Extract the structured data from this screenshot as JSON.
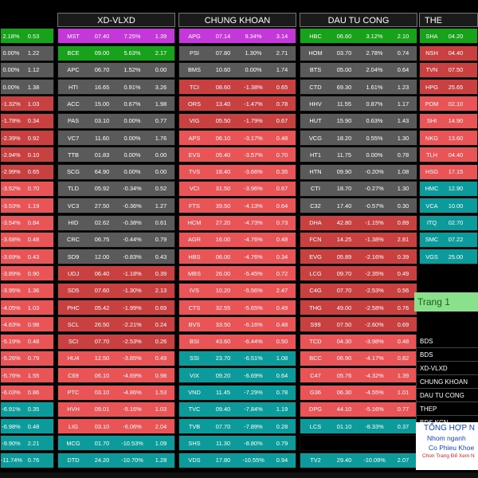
{
  "colors": {
    "green": "#18a11a",
    "gray": "#5a5a5a",
    "red": "#e95457",
    "deep": "#c94041",
    "teal": "#0d9a9a",
    "magenta": "#c437d8"
  },
  "col0": [
    {
      "s": "",
      "p": "2.18%",
      "c": "",
      "v": "0.53",
      "k": "green"
    },
    {
      "s": "",
      "p": "0.00%",
      "c": "",
      "v": "1.22",
      "k": "gray"
    },
    {
      "s": "",
      "p": "0.00%",
      "c": "",
      "v": "1.12",
      "k": "gray"
    },
    {
      "s": "",
      "p": "0.00%",
      "c": "",
      "v": "1.38",
      "k": "gray"
    },
    {
      "s": "",
      "p": "-1.32%",
      "c": "",
      "v": "1.03",
      "k": "deep"
    },
    {
      "s": "",
      "p": "-1.78%",
      "c": "",
      "v": "0.34",
      "k": "deep"
    },
    {
      "s": "",
      "p": "-2.39%",
      "c": "",
      "v": "0.92",
      "k": "deep"
    },
    {
      "s": "",
      "p": "-2.94%",
      "c": "",
      "v": "0.10",
      "k": "deep"
    },
    {
      "s": "",
      "p": "-2.99%",
      "c": "",
      "v": "0.65",
      "k": "deep"
    },
    {
      "s": "",
      "p": "-3.52%",
      "c": "",
      "v": "0.70",
      "k": "red"
    },
    {
      "s": "",
      "p": "-3.53%",
      "c": "",
      "v": "1.19",
      "k": "red"
    },
    {
      "s": "",
      "p": "-3.54%",
      "c": "",
      "v": "0.84",
      "k": "red"
    },
    {
      "s": "",
      "p": "-3.68%",
      "c": "",
      "v": "0.48",
      "k": "red"
    },
    {
      "s": "",
      "p": "-3.69%",
      "c": "",
      "v": "0.43",
      "k": "red"
    },
    {
      "s": "",
      "p": "-3.89%",
      "c": "",
      "v": "0.90",
      "k": "red"
    },
    {
      "s": "",
      "p": "-3.95%",
      "c": "",
      "v": "1.36",
      "k": "red"
    },
    {
      "s": "",
      "p": "-4.05%",
      "c": "",
      "v": "1.03",
      "k": "red"
    },
    {
      "s": "",
      "p": "-4.63%",
      "c": "",
      "v": "0.98",
      "k": "red"
    },
    {
      "s": "",
      "p": "-5.19%",
      "c": "",
      "v": "0.48",
      "k": "red"
    },
    {
      "s": "",
      "p": "-5.26%",
      "c": "",
      "v": "0.79",
      "k": "red"
    },
    {
      "s": "",
      "p": "-5.76%",
      "c": "",
      "v": "1.55",
      "k": "red"
    },
    {
      "s": "",
      "p": "-6.03%",
      "c": "",
      "v": "0.86",
      "k": "red"
    },
    {
      "s": "",
      "p": "-6.91%",
      "c": "",
      "v": "0.35",
      "k": "teal"
    },
    {
      "s": "",
      "p": "-6.98%",
      "c": "",
      "v": "0.48",
      "k": "teal"
    },
    {
      "s": "",
      "p": "-9.90%",
      "c": "",
      "v": "2.21",
      "k": "teal"
    },
    {
      "s": "",
      "p": "-11.74%",
      "c": "",
      "v": "0.76",
      "k": "teal"
    }
  ],
  "panels": [
    {
      "title": "XD-VLXD",
      "rows": [
        {
          "s": "MST",
          "p": "07.40",
          "c": "7.25%",
          "v": "1.39",
          "k": "magenta"
        },
        {
          "s": "BCE",
          "p": "09.00",
          "c": "5.63%",
          "v": "2.17",
          "k": "green"
        },
        {
          "s": "APC",
          "p": "06.70",
          "c": "1.52%",
          "v": "0.00",
          "k": "gray"
        },
        {
          "s": "HTI",
          "p": "16.65",
          "c": "0.91%",
          "v": "3.26",
          "k": "gray"
        },
        {
          "s": "ACC",
          "p": "15.00",
          "c": "0.67%",
          "v": "1.98",
          "k": "gray"
        },
        {
          "s": "PAS",
          "p": "03.10",
          "c": "0.00%",
          "v": "0.77",
          "k": "gray"
        },
        {
          "s": "VC7",
          "p": "11.60",
          "c": "0.00%",
          "v": "1.76",
          "k": "gray"
        },
        {
          "s": "TTB",
          "p": "01.83",
          "c": "0.00%",
          "v": "0.00",
          "k": "gray"
        },
        {
          "s": "SCG",
          "p": "64.90",
          "c": "0.00%",
          "v": "0.00",
          "k": "gray"
        },
        {
          "s": "TLD",
          "p": "05.92",
          "c": "-0.34%",
          "v": "0.52",
          "k": "gray"
        },
        {
          "s": "VC3",
          "p": "27.50",
          "c": "-0.36%",
          "v": "1.27",
          "k": "gray"
        },
        {
          "s": "HID",
          "p": "02.62",
          "c": "-0.38%",
          "v": "0.61",
          "k": "gray"
        },
        {
          "s": "CRC",
          "p": "06.75",
          "c": "-0.44%",
          "v": "0.79",
          "k": "gray"
        },
        {
          "s": "SD9",
          "p": "12.00",
          "c": "-0.83%",
          "v": "0.43",
          "k": "gray"
        },
        {
          "s": "UDJ",
          "p": "06.40",
          "c": "-1.18%",
          "v": "0.39",
          "k": "deep"
        },
        {
          "s": "SD5",
          "p": "07.60",
          "c": "-1.30%",
          "v": "2.13",
          "k": "deep"
        },
        {
          "s": "PHC",
          "p": "05.42",
          "c": "-1.99%",
          "v": "0.69",
          "k": "deep"
        },
        {
          "s": "SCL",
          "p": "26.50",
          "c": "-2.21%",
          "v": "0.24",
          "k": "deep"
        },
        {
          "s": "SCI",
          "p": "07.70",
          "c": "-2.53%",
          "v": "0.26",
          "k": "deep"
        },
        {
          "s": "HU4",
          "p": "12.50",
          "c": "-3.85%",
          "v": "0.49",
          "k": "red"
        },
        {
          "s": "C69",
          "p": "06.10",
          "c": "-4.69%",
          "v": "0.98",
          "k": "red"
        },
        {
          "s": "PTC",
          "p": "03.10",
          "c": "-4.86%",
          "v": "1.53",
          "k": "red"
        },
        {
          "s": "HVH",
          "p": "09.01",
          "c": "-5.16%",
          "v": "1.03",
          "k": "red"
        },
        {
          "s": "LIG",
          "p": "03.10",
          "c": "-6.06%",
          "v": "2.04",
          "k": "red"
        },
        {
          "s": "MCG",
          "p": "01.70",
          "c": "-10.53%",
          "v": "1.09",
          "k": "teal"
        },
        {
          "s": "DTD",
          "p": "24.20",
          "c": "-10.70%",
          "v": "1.28",
          "k": "teal"
        }
      ]
    },
    {
      "title": "CHUNG KHOAN",
      "rows": [
        {
          "s": "APG",
          "p": "07.14",
          "c": "9.34%",
          "v": "3.14",
          "k": "magenta"
        },
        {
          "s": "PSI",
          "p": "07.80",
          "c": "1.30%",
          "v": "2.71",
          "k": "gray"
        },
        {
          "s": "BMS",
          "p": "10.60",
          "c": "0.00%",
          "v": "1.74",
          "k": "gray"
        },
        {
          "s": "TCI",
          "p": "08.60",
          "c": "-1.38%",
          "v": "0.65",
          "k": "deep"
        },
        {
          "s": "ORS",
          "p": "13.40",
          "c": "-1.47%",
          "v": "0.78",
          "k": "deep"
        },
        {
          "s": "VIG",
          "p": "05.50",
          "c": "-1.79%",
          "v": "0.67",
          "k": "deep"
        },
        {
          "s": "APS",
          "p": "06.10",
          "c": "-3.17%",
          "v": "0.48",
          "k": "red"
        },
        {
          "s": "EVS",
          "p": "05.40",
          "c": "-3.57%",
          "v": "0.70",
          "k": "red"
        },
        {
          "s": "TVS",
          "p": "18.40",
          "c": "-3.66%",
          "v": "0.35",
          "k": "red"
        },
        {
          "s": "VCI",
          "p": "31.50",
          "c": "-3.96%",
          "v": "0.67",
          "k": "red"
        },
        {
          "s": "FTS",
          "p": "39.50",
          "c": "-4.13%",
          "v": "0.64",
          "k": "red"
        },
        {
          "s": "HCM",
          "p": "27.20",
          "c": "-4.73%",
          "v": "0.73",
          "k": "red"
        },
        {
          "s": "AGR",
          "p": "16.00",
          "c": "-4.76%",
          "v": "0.48",
          "k": "red"
        },
        {
          "s": "HBS",
          "p": "06.00",
          "c": "-4.76%",
          "v": "0.34",
          "k": "red"
        },
        {
          "s": "MBS",
          "p": "26.00",
          "c": "-5.45%",
          "v": "0.72",
          "k": "red"
        },
        {
          "s": "IVS",
          "p": "10.20",
          "c": "-5.56%",
          "v": "2.47",
          "k": "red"
        },
        {
          "s": "CTS",
          "p": "32.55",
          "c": "-5.65%",
          "v": "0.49",
          "k": "red"
        },
        {
          "s": "BVS",
          "p": "33.50",
          "c": "-6.16%",
          "v": "0.48",
          "k": "red"
        },
        {
          "s": "BSI",
          "p": "43.60",
          "c": "-6.44%",
          "v": "0.50",
          "k": "red"
        },
        {
          "s": "SSI",
          "p": "23.70",
          "c": "-6.51%",
          "v": "1.08",
          "k": "teal"
        },
        {
          "s": "VIX",
          "p": "09.20",
          "c": "-6.69%",
          "v": "0.64",
          "k": "teal"
        },
        {
          "s": "VND",
          "p": "11.45",
          "c": "-7.29%",
          "v": "0.78",
          "k": "teal"
        },
        {
          "s": "TVC",
          "p": "09.40",
          "c": "-7.84%",
          "v": "1.19",
          "k": "teal"
        },
        {
          "s": "TVB",
          "p": "07.70",
          "c": "-7.89%",
          "v": "0.28",
          "k": "teal"
        },
        {
          "s": "SHS",
          "p": "11.30",
          "c": "-8.80%",
          "v": "0.79",
          "k": "teal"
        },
        {
          "s": "VDS",
          "p": "17.80",
          "c": "-10.55%",
          "v": "0.94",
          "k": "teal"
        }
      ]
    },
    {
      "title": "DAU TU CONG",
      "rows": [
        {
          "s": "HBC",
          "p": "06.60",
          "c": "3.12%",
          "v": "2.10",
          "k": "green"
        },
        {
          "s": "HOM",
          "p": "03.70",
          "c": "2.78%",
          "v": "0.74",
          "k": "gray"
        },
        {
          "s": "BTS",
          "p": "05.00",
          "c": "2.04%",
          "v": "0.64",
          "k": "gray"
        },
        {
          "s": "CTD",
          "p": "69.30",
          "c": "1.61%",
          "v": "1.23",
          "k": "gray"
        },
        {
          "s": "HHV",
          "p": "11.55",
          "c": "0.87%",
          "v": "1.17",
          "k": "gray"
        },
        {
          "s": "HUT",
          "p": "15.90",
          "c": "0.63%",
          "v": "1.43",
          "k": "gray"
        },
        {
          "s": "VCG",
          "p": "18.20",
          "c": "0.55%",
          "v": "1.30",
          "k": "gray"
        },
        {
          "s": "HT1",
          "p": "11.75",
          "c": "0.00%",
          "v": "0.78",
          "k": "gray"
        },
        {
          "s": "HTN",
          "p": "09.90",
          "c": "-0.20%",
          "v": "1.08",
          "k": "gray"
        },
        {
          "s": "CTI",
          "p": "18.70",
          "c": "-0.27%",
          "v": "1.30",
          "k": "gray"
        },
        {
          "s": "C32",
          "p": "17.40",
          "c": "-0.57%",
          "v": "0.30",
          "k": "gray"
        },
        {
          "s": "DHA",
          "p": "42.80",
          "c": "-1.15%",
          "v": "0.89",
          "k": "deep"
        },
        {
          "s": "FCN",
          "p": "14.25",
          "c": "-1.38%",
          "v": "2.81",
          "k": "deep"
        },
        {
          "s": "EVG",
          "p": "05.89",
          "c": "-2.16%",
          "v": "0.39",
          "k": "deep"
        },
        {
          "s": "LCG",
          "p": "09.70",
          "c": "-2.35%",
          "v": "0.49",
          "k": "deep"
        },
        {
          "s": "C4G",
          "p": "07.70",
          "c": "-2.53%",
          "v": "0.56",
          "k": "deep"
        },
        {
          "s": "THG",
          "p": "49.00",
          "c": "-2.58%",
          "v": "0.76",
          "k": "deep"
        },
        {
          "s": "S99",
          "p": "07.50",
          "c": "-2.60%",
          "v": "0.69",
          "k": "deep"
        },
        {
          "s": "TCD",
          "p": "04.30",
          "c": "-3.98%",
          "v": "0.48",
          "k": "red"
        },
        {
          "s": "BCC",
          "p": "06.90",
          "c": "-4.17%",
          "v": "0.82",
          "k": "red"
        },
        {
          "s": "C47",
          "p": "05.76",
          "c": "-4.32%",
          "v": "1.39",
          "k": "red"
        },
        {
          "s": "G36",
          "p": "06.30",
          "c": "-4.55%",
          "v": "1.01",
          "k": "red"
        },
        {
          "s": "DPG",
          "p": "44.10",
          "c": "-5.16%",
          "v": "0.77",
          "k": "red"
        },
        {
          "s": "LCS",
          "p": "01.10",
          "c": "-8.33%",
          "v": "0.37",
          "k": "teal"
        },
        {
          "s": "",
          "p": "",
          "c": "",
          "v": "",
          "k": "black"
        },
        {
          "s": "TV2",
          "p": "29.40",
          "c": "-10.09%",
          "v": "2.07",
          "k": "teal"
        }
      ]
    },
    {
      "title": "THE",
      "rows": [
        {
          "s": "SHA",
          "p": "04.20",
          "c": "",
          "v": "",
          "k": "green"
        },
        {
          "s": "NSH",
          "p": "04.40",
          "c": "",
          "v": "",
          "k": "deep"
        },
        {
          "s": "TVN",
          "p": "07.50",
          "c": "",
          "v": "",
          "k": "deep"
        },
        {
          "s": "HPG",
          "p": "25.65",
          "c": "",
          "v": "",
          "k": "deep"
        },
        {
          "s": "POM",
          "p": "02.10",
          "c": "",
          "v": "",
          "k": "red"
        },
        {
          "s": "SHI",
          "p": "14.90",
          "c": "",
          "v": "",
          "k": "red"
        },
        {
          "s": "NKG",
          "p": "13.60",
          "c": "",
          "v": "",
          "k": "red"
        },
        {
          "s": "TLH",
          "p": "04.40",
          "c": "",
          "v": "",
          "k": "red"
        },
        {
          "s": "HSG",
          "p": "17.15",
          "c": "",
          "v": "",
          "k": "red"
        },
        {
          "s": "HMC",
          "p": "12.90",
          "c": "",
          "v": "",
          "k": "teal"
        },
        {
          "s": "VCA",
          "p": "10.00",
          "c": "",
          "v": "",
          "k": "teal"
        },
        {
          "s": "ITQ",
          "p": "02.70",
          "c": "",
          "v": "",
          "k": "teal"
        },
        {
          "s": "SMC",
          "p": "07.22",
          "c": "",
          "v": "",
          "k": "teal"
        },
        {
          "s": "VGS",
          "p": "25.00",
          "c": "",
          "v": "",
          "k": "teal"
        }
      ]
    }
  ],
  "trang": {
    "label": "Trang 1"
  },
  "menu": [
    "BDS",
    "BDS",
    "XD-VLXD",
    "CHUNG KHOAN",
    "DAU TU CONG",
    "THEP",
    "BDS KCN"
  ],
  "tonghop": {
    "title": "TỔNG HỢP N",
    "line1": "Nhom nganh",
    "line2": "Co Phieu Khoe",
    "line3": "Chon Trang Để Xem N"
  }
}
